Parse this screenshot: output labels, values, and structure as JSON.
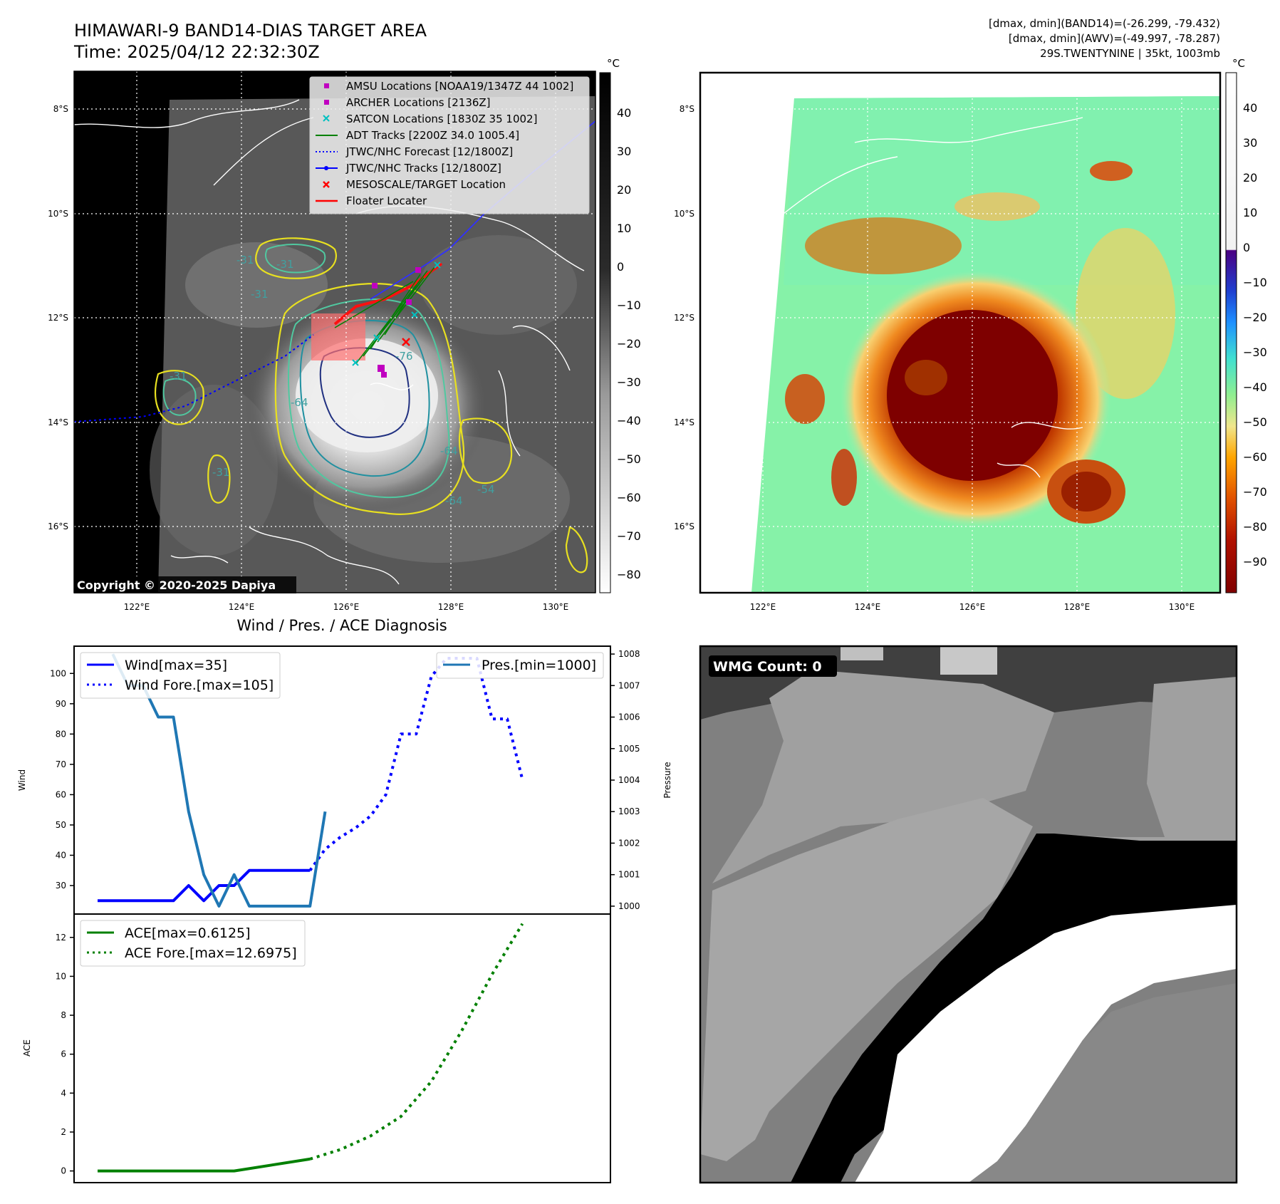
{
  "header": {
    "title_line1": "HIMAWARI-9 BAND14-DIAS TARGET AREA",
    "title_line2": "Time: 2025/04/12 22:32:30Z",
    "info_line1": "[dmax, dmin](BAND14)=(-26.299, -79.432)",
    "info_line2": "[dmax, dmin](AWV)=(-49.997, -78.287)",
    "info_line3": "29S.TWENTYNINE | 35kt, 1003mb"
  },
  "map_axes": {
    "lon_ticks": [
      "122°E",
      "124°E",
      "126°E",
      "128°E",
      "130°E"
    ],
    "lat_ticks": [
      "8°S",
      "10°S",
      "12°S",
      "14°S",
      "16°S"
    ]
  },
  "ir_panel": {
    "copyright": "Copyright © 2020-2025 Dapiya",
    "contour_labels": [
      "-31",
      "-31",
      "-31",
      "-31",
      "-31",
      "-64",
      "-64",
      "-64",
      "-76",
      "-54"
    ],
    "legend": [
      {
        "label": "AMSU Locations [NOAA19/1347Z 44 1002]",
        "marker": "square",
        "color": "#c000c0"
      },
      {
        "label": "ARCHER Locations [2136Z]",
        "marker": "square",
        "color": "#c000c0"
      },
      {
        "label": "SATCON Locations [1830Z 35 1002]",
        "marker": "x",
        "color": "#00c0c0"
      },
      {
        "label": "ADT Tracks [2200Z 34.0 1005.4]",
        "marker": "line",
        "color": "#008000"
      },
      {
        "label": "JTWC/NHC Forecast [12/1800Z]",
        "marker": "dotted",
        "color": "#0000ff"
      },
      {
        "label": "JTWC/NHC Tracks [12/1800Z]",
        "marker": "line-dot",
        "color": "#0000ff"
      },
      {
        "label": "MESOSCALE/TARGET Location",
        "marker": "x",
        "color": "#ff0000"
      },
      {
        "label": "Floater Locater",
        "marker": "line",
        "color": "#ff0000"
      }
    ],
    "colorbar": {
      "unit": "°C",
      "ticks": [
        "40",
        "30",
        "20",
        "10",
        "0",
        "−10",
        "−20",
        "−30",
        "−40",
        "−50",
        "−60",
        "−70",
        "−80"
      ]
    }
  },
  "awv_panel": {
    "colorbar": {
      "unit": "°C",
      "ticks": [
        "40",
        "30",
        "20",
        "10",
        "0",
        "−10",
        "−20",
        "−30",
        "−40",
        "−50",
        "−60",
        "−70",
        "−80",
        "−90"
      ]
    }
  },
  "wmg_panel": {
    "badge": "WMG Count: 0"
  },
  "chart_data": [
    {
      "type": "line",
      "title": "Wind / Pres. / ACE Diagnosis",
      "ylabel": "Wind",
      "y2label": "Pressure",
      "ylim": [
        20.6,
        109
      ],
      "y2lim": [
        999.75,
        1008.25
      ],
      "yticks": [
        "100",
        "90",
        "80",
        "70",
        "60",
        "50",
        "40",
        "30"
      ],
      "y2ticks": [
        "1008",
        "1007",
        "1006",
        "1005",
        "1004",
        "1003",
        "1002",
        "1001",
        "1000"
      ],
      "legend_left": [
        "Wind[max=35]",
        "Wind Fore.[max=105]"
      ],
      "legend_right": [
        "Pres.[min=1000]"
      ],
      "series": [
        {
          "name": "Wind[max=35]",
          "axis": "left",
          "style": "solid",
          "color": "#0000ff",
          "points": [
            [
              0,
              25
            ],
            [
              1,
              25
            ],
            [
              2,
              25
            ],
            [
              3,
              25
            ],
            [
              4,
              25
            ],
            [
              5,
              25
            ],
            [
              6,
              30
            ],
            [
              7,
              25
            ],
            [
              8,
              30
            ],
            [
              9,
              30
            ],
            [
              10,
              35
            ],
            [
              11,
              35
            ],
            [
              12,
              35
            ],
            [
              13,
              35
            ],
            [
              14,
              35
            ]
          ]
        },
        {
          "name": "Wind Fore.[max=105]",
          "axis": "left",
          "style": "dotted",
          "color": "#0000ff",
          "points": [
            [
              14,
              35
            ],
            [
              15,
              42
            ],
            [
              16,
              46
            ],
            [
              17,
              49
            ],
            [
              18,
              53
            ],
            [
              19,
              60
            ],
            [
              20,
              80
            ],
            [
              21,
              80
            ],
            [
              22,
              99
            ],
            [
              23,
              105
            ],
            [
              24,
              105
            ],
            [
              25,
              105
            ],
            [
              26,
              85
            ],
            [
              27,
              85
            ],
            [
              28,
              65
            ]
          ]
        },
        {
          "name": "Pres.[min=1000]",
          "axis": "right",
          "style": "solid",
          "color": "#1f77b4",
          "points": [
            [
              1,
              1008
            ],
            [
              2,
              1007
            ],
            [
              3,
              1007
            ],
            [
              4,
              1006
            ],
            [
              5,
              1006
            ],
            [
              6,
              1003
            ],
            [
              7,
              1001
            ],
            [
              8,
              1000
            ],
            [
              9,
              1001
            ],
            [
              10,
              1000
            ],
            [
              11,
              1000
            ],
            [
              12,
              1000
            ],
            [
              13,
              1000
            ],
            [
              14,
              1000
            ],
            [
              15,
              1003
            ]
          ]
        }
      ]
    },
    {
      "type": "line",
      "ylabel": "ACE",
      "ylim": [
        -0.6,
        13.2
      ],
      "yticks": [
        "12",
        "10",
        "8",
        "6",
        "4",
        "2",
        "0"
      ],
      "legend": [
        "ACE[max=0.6125]",
        "ACE Fore.[max=12.6975]"
      ],
      "series": [
        {
          "name": "ACE[max=0.6125]",
          "style": "solid",
          "color": "#008000",
          "points": [
            [
              0,
              0
            ],
            [
              9,
              0
            ],
            [
              14,
              0.6125
            ]
          ]
        },
        {
          "name": "ACE Fore.[max=12.6975]",
          "style": "dotted",
          "color": "#008000",
          "points": [
            [
              14,
              0.6125
            ],
            [
              16,
              1.1
            ],
            [
              18,
              1.8
            ],
            [
              20,
              2.8
            ],
            [
              22,
              4.6
            ],
            [
              24,
              7.2
            ],
            [
              26,
              10.1
            ],
            [
              28,
              12.6975
            ]
          ]
        }
      ]
    }
  ]
}
